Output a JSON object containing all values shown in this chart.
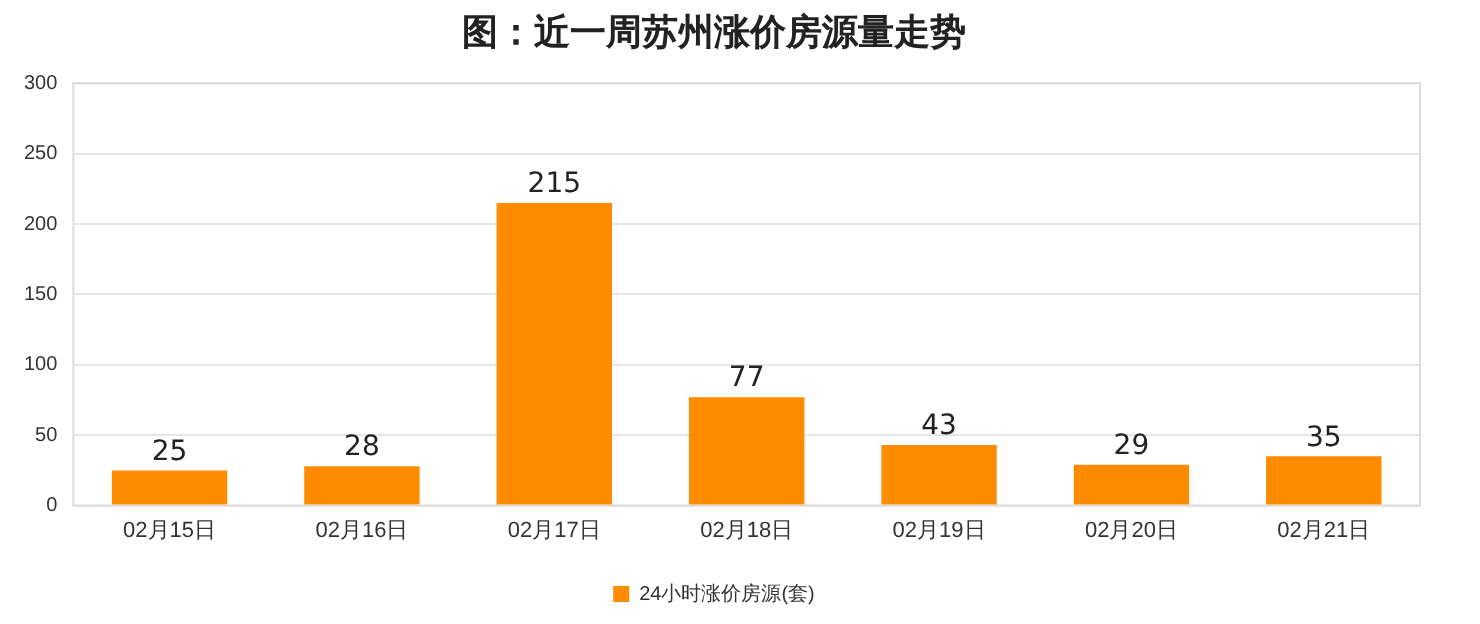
{
  "chart_data": {
    "type": "bar",
    "title": "图：近一周苏州涨价房源量走势",
    "categories": [
      "02月15日",
      "02月16日",
      "02月17日",
      "02月18日",
      "02月19日",
      "02月20日",
      "02月21日"
    ],
    "series": [
      {
        "name": "24小时涨价房源(套)",
        "color": "#ff8c00",
        "values": [
          25,
          28,
          215,
          77,
          43,
          29,
          35
        ]
      }
    ],
    "ylim": [
      0,
      300
    ],
    "yticks": [
      0,
      50,
      100,
      150,
      200,
      250,
      300
    ],
    "grid": "y",
    "legend": "bottom",
    "data_labels": true
  }
}
